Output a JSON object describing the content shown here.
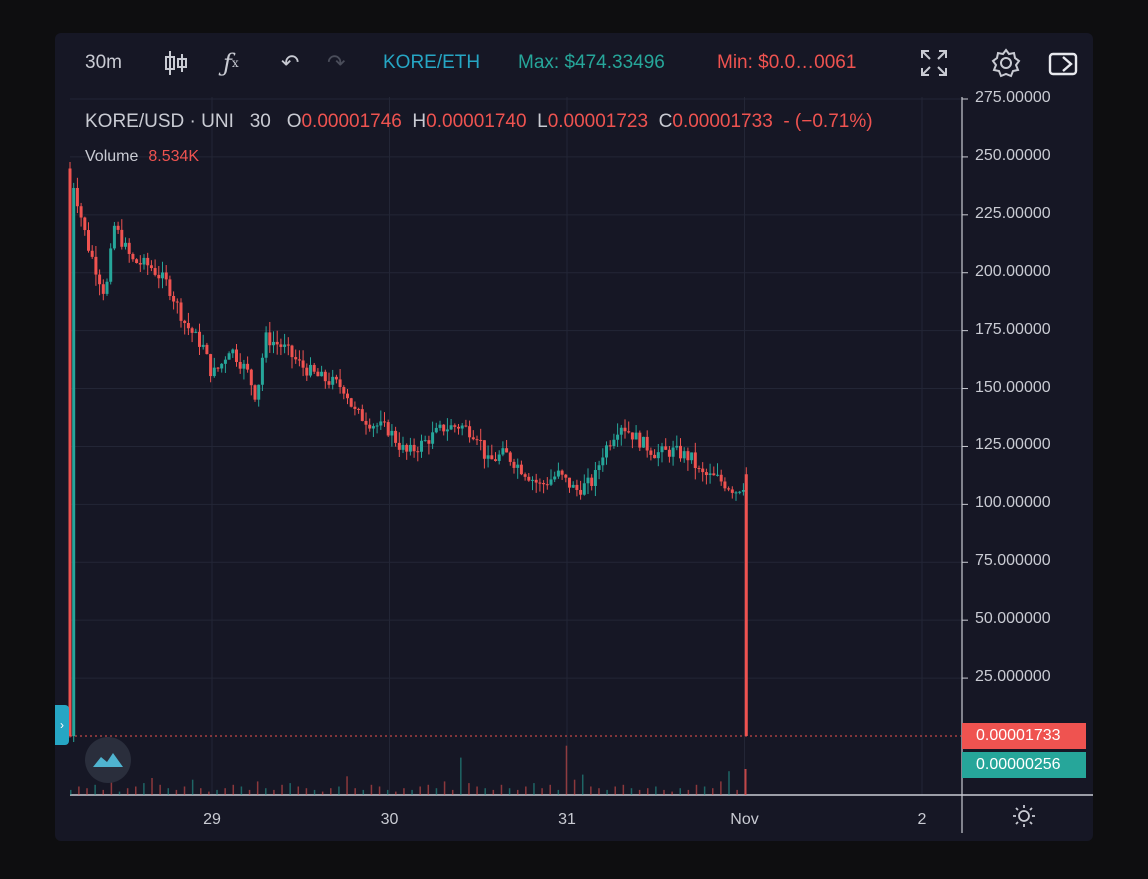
{
  "toolbar": {
    "interval": "30m",
    "pair": "KORE/ETH",
    "max": "Max: $474.33496",
    "min": "Min: $0.0…0061",
    "icons": [
      "candlestick-icon",
      "function-icon",
      "undo-icon",
      "redo-icon",
      "fullscreen-icon",
      "settings-icon",
      "snapshot-icon"
    ]
  },
  "legend": {
    "symbol": "KORE/USD · UNI",
    "symbol_sep": "·",
    "interval": "30",
    "o_label": "O",
    "o": "0.00001746",
    "h_label": "H",
    "h": "0.00001740",
    "l_label": "L",
    "l": "0.00001723",
    "c_label": "C",
    "c": "0.00001733",
    "change": "- (−0.71%)",
    "volume_label": "Volume",
    "volume": "8.534K"
  },
  "price_tags": {
    "current": "0.00001733",
    "secondary": "0.00000256"
  },
  "colors": {
    "up": "#26a69a",
    "down": "#ef5350",
    "bg": "#161725",
    "pair": "#26a6c4",
    "max": "#26a69a",
    "min": "#ef5350"
  },
  "chart_data": {
    "type": "candlestick",
    "ylim": [
      0,
      275
    ],
    "y_ticks": [
      "275.00000",
      "250.00000",
      "225.00000",
      "200.00000",
      "175.00000",
      "150.00000",
      "125.00000",
      "100.00000",
      "75.000000",
      "50.000000",
      "25.000000"
    ],
    "y_tick_values": [
      275,
      250,
      225,
      200,
      175,
      150,
      125,
      100,
      75,
      50,
      25
    ],
    "x_ticks": [
      "29",
      "30",
      "31",
      "Nov",
      "2"
    ],
    "x_tick_days": [
      1,
      2,
      3,
      4,
      5
    ],
    "x_start_day": 0.2,
    "close_path": [
      [
        0.2,
        245
      ],
      [
        0.3,
        212
      ],
      [
        0.4,
        190
      ],
      [
        0.45,
        220
      ],
      [
        0.55,
        205
      ],
      [
        0.65,
        203
      ],
      [
        0.75,
        195
      ],
      [
        0.85,
        178
      ],
      [
        0.95,
        168
      ],
      [
        1.0,
        156
      ],
      [
        1.05,
        160
      ],
      [
        1.1,
        168
      ],
      [
        1.2,
        157
      ],
      [
        1.25,
        146
      ],
      [
        1.3,
        172
      ],
      [
        1.4,
        168
      ],
      [
        1.5,
        160
      ],
      [
        1.6,
        155
      ],
      [
        1.7,
        152
      ],
      [
        1.75,
        150
      ],
      [
        1.8,
        140
      ],
      [
        1.9,
        135
      ],
      [
        2.0,
        132
      ],
      [
        2.05,
        126
      ],
      [
        2.1,
        122
      ],
      [
        2.2,
        127
      ],
      [
        2.3,
        133
      ],
      [
        2.4,
        134
      ],
      [
        2.5,
        130
      ],
      [
        2.55,
        118
      ],
      [
        2.65,
        122
      ],
      [
        2.75,
        115
      ],
      [
        2.85,
        108
      ],
      [
        2.95,
        113
      ],
      [
        3.05,
        106
      ],
      [
        3.15,
        110
      ],
      [
        3.2,
        122
      ],
      [
        3.3,
        135
      ],
      [
        3.4,
        128
      ],
      [
        3.5,
        122
      ],
      [
        3.6,
        123
      ],
      [
        3.7,
        120
      ],
      [
        3.75,
        113
      ],
      [
        3.85,
        111
      ],
      [
        3.95,
        106
      ],
      [
        4.0,
        109
      ],
      [
        4.01,
        0.0001
      ]
    ],
    "volume_values": [
      3,
      5,
      4,
      6,
      3,
      8,
      2,
      4,
      5,
      7,
      10,
      6,
      4,
      3,
      5,
      9,
      4,
      2,
      3,
      4,
      6,
      5,
      3,
      8,
      4,
      3,
      6,
      7,
      5,
      4,
      3,
      2,
      4,
      5,
      11,
      4,
      3,
      6,
      5,
      3,
      2,
      4,
      3,
      5,
      6,
      4,
      8,
      3,
      22,
      7,
      5,
      4,
      3,
      6,
      4,
      3,
      5,
      7,
      4,
      6,
      3,
      29,
      9,
      12,
      5,
      4,
      3,
      5,
      6,
      4,
      3,
      4,
      5,
      3,
      2,
      4,
      3,
      6,
      5,
      4,
      8,
      14,
      3
    ]
  }
}
